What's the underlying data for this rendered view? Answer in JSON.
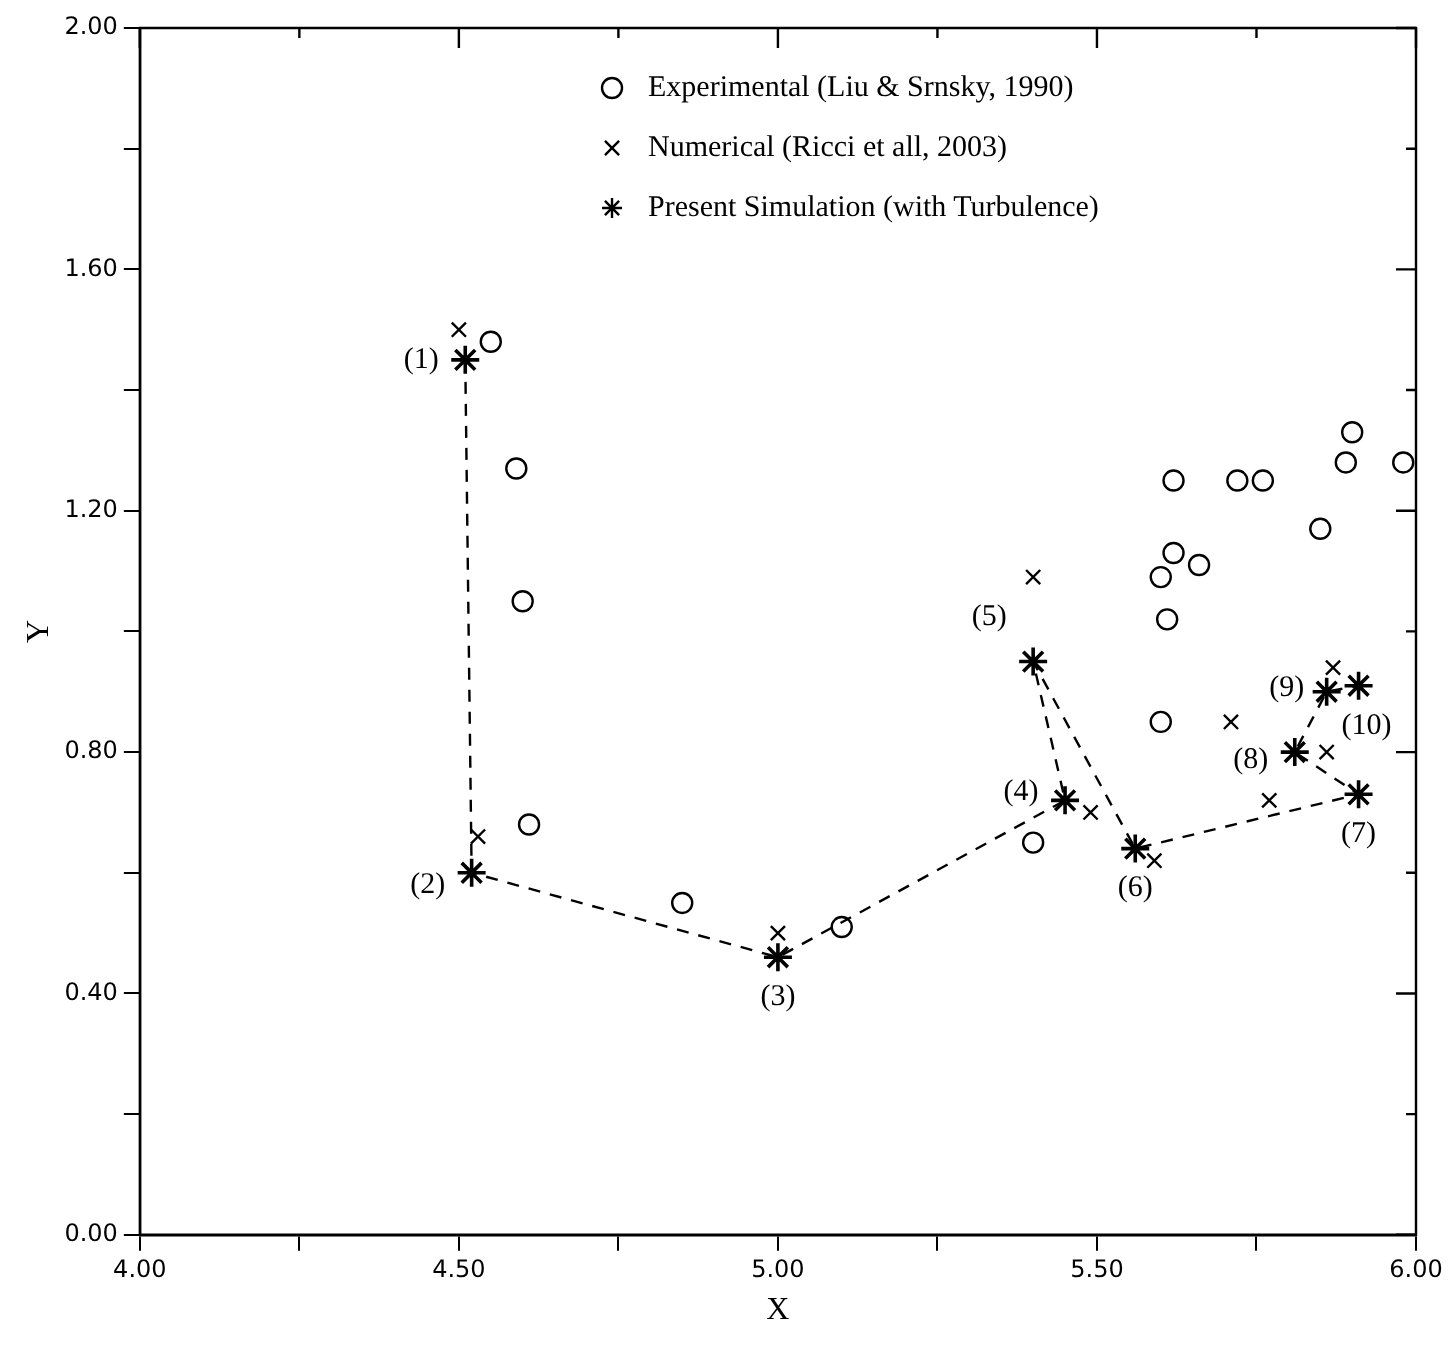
{
  "chart_data": {
    "type": "scatter",
    "xlabel": "X",
    "ylabel": "Y",
    "xlim": [
      4,
      6
    ],
    "ylim": [
      0,
      2
    ],
    "xticks": [
      {
        "value": 4,
        "label": "4.00"
      },
      {
        "value": 4.25,
        "label": null
      },
      {
        "value": 4.5,
        "label": "4.50"
      },
      {
        "value": 4.75,
        "label": null
      },
      {
        "value": 5,
        "label": "5.00"
      },
      {
        "value": 5.25,
        "label": null
      },
      {
        "value": 5.5,
        "label": "5.50"
      },
      {
        "value": 5.75,
        "label": null
      },
      {
        "value": 6,
        "label": "6.00"
      }
    ],
    "yticks": [
      {
        "value": 0,
        "label": "0.00"
      },
      {
        "value": 0.2,
        "label": null
      },
      {
        "value": 0.4,
        "label": "0.40"
      },
      {
        "value": 0.6,
        "label": null
      },
      {
        "value": 0.8,
        "label": "0.80"
      },
      {
        "value": 1,
        "label": null
      },
      {
        "value": 1.2,
        "label": "1.20"
      },
      {
        "value": 1.4,
        "label": null
      },
      {
        "value": 1.6,
        "label": "1.60"
      },
      {
        "value": 1.8,
        "label": null
      },
      {
        "value": 2,
        "label": "2.00"
      }
    ],
    "grid": false,
    "legend": "top right",
    "series": [
      {
        "name": "Experimental (Liu & Srnsky, 1990)",
        "type": "scatter",
        "marker": "circle",
        "color": "#000000",
        "x": [
          4.55,
          4.59,
          4.6,
          4.61,
          4.85,
          5.1,
          5.4,
          5.6,
          5.61,
          5.6,
          5.62,
          5.66,
          5.62,
          5.72,
          5.76,
          5.85,
          5.9,
          5.89,
          5.98
        ],
        "values": [
          1.48,
          1.27,
          1.05,
          0.68,
          0.55,
          0.51,
          0.65,
          0.85,
          1.02,
          1.09,
          1.13,
          1.11,
          1.25,
          1.25,
          1.25,
          1.17,
          1.33,
          1.28,
          1.28
        ]
      },
      {
        "name": "Numerical (Ricci et all, 2003)",
        "type": "scatter",
        "marker": "cross",
        "color": "#000000",
        "x": [
          4.5,
          4.53,
          5.0,
          5.49,
          5.4,
          5.59,
          5.77,
          5.71,
          5.87,
          5.86
        ],
        "values": [
          1.5,
          0.66,
          0.5,
          0.7,
          1.09,
          0.62,
          0.72,
          0.85,
          0.94,
          0.8
        ]
      },
      {
        "name": "Present Simulation (with Turbulence)",
        "type": "line",
        "marker": "cross",
        "line_style": "dashed",
        "color": "#000000",
        "x": [
          4.51,
          4.52,
          5.0,
          5.45,
          5.4,
          5.56,
          5.91,
          5.81,
          5.86,
          5.91
        ],
        "values": [
          1.45,
          0.6,
          0.46,
          0.72,
          0.95,
          0.64,
          0.73,
          0.8,
          0.9,
          0.91
        ]
      }
    ],
    "annotations": [
      {
        "text": "(1)",
        "x": 4.51,
        "y": 1.45
      },
      {
        "text": "(2)",
        "x": 4.52,
        "y": 0.6
      },
      {
        "text": "(3)",
        "x": 5.0,
        "y": 0.46
      },
      {
        "text": "(4)",
        "x": 5.45,
        "y": 0.72
      },
      {
        "text": "(5)",
        "x": 5.4,
        "y": 0.95
      },
      {
        "text": "(6)",
        "x": 5.56,
        "y": 0.64
      },
      {
        "text": "(7)",
        "x": 5.91,
        "y": 0.73
      },
      {
        "text": "(8)",
        "x": 5.81,
        "y": 0.8
      },
      {
        "text": "(9)",
        "x": 5.86,
        "y": 0.9
      },
      {
        "text": "(10)",
        "x": 5.91,
        "y": 0.91
      }
    ]
  }
}
